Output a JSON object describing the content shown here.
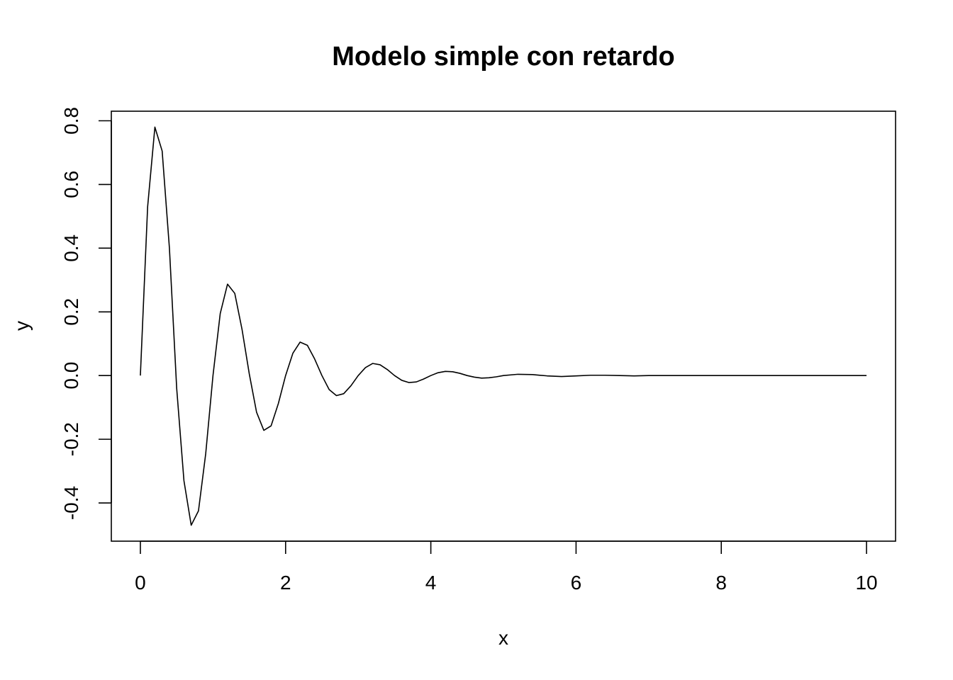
{
  "chart_data": {
    "type": "line",
    "title": "Modelo simple con retardo",
    "xlabel": "x",
    "ylabel": "y",
    "xlim": [
      -0.4,
      10.4
    ],
    "ylim": [
      -0.52,
      0.83
    ],
    "xticks": [
      0,
      2,
      4,
      6,
      8,
      10
    ],
    "xtick_labels": [
      "0",
      "2",
      "4",
      "6",
      "8",
      "10"
    ],
    "yticks": [
      -0.4,
      -0.2,
      0.0,
      0.2,
      0.4,
      0.6,
      0.8
    ],
    "ytick_labels": [
      "-0.4",
      "-0.2",
      "0.0",
      "0.2",
      "0.4",
      "0.6",
      "0.8"
    ],
    "grid": false,
    "series": [
      {
        "x": [
          0.0,
          0.1,
          0.2,
          0.3,
          0.4,
          0.5,
          0.6,
          0.7,
          0.8,
          0.9,
          1.0,
          1.1,
          1.2,
          1.3,
          1.4,
          1.5,
          1.6,
          1.7,
          1.8,
          1.9,
          2.0,
          2.1,
          2.2,
          2.3,
          2.4,
          2.5,
          2.6,
          2.7,
          2.8,
          2.9,
          3.0,
          3.1,
          3.2,
          3.3,
          3.4,
          3.5,
          3.6,
          3.7,
          3.8,
          3.9,
          4.0,
          4.1,
          4.2,
          4.3,
          4.4,
          4.5,
          4.6,
          4.7,
          4.8,
          4.9,
          5.0,
          5.2,
          5.4,
          5.6,
          5.8,
          6.0,
          6.2,
          6.4,
          6.6,
          6.8,
          7.0,
          7.2,
          7.4,
          7.6,
          7.8,
          8.0,
          8.2,
          8.4,
          8.6,
          8.8,
          9.0,
          9.2,
          9.4,
          9.6,
          9.8,
          10.0
        ],
        "y": [
          0.0,
          0.53,
          0.78,
          0.705,
          0.4,
          -0.04,
          -0.33,
          -0.47,
          -0.425,
          -0.245,
          0.0,
          0.195,
          0.287,
          0.258,
          0.145,
          0.005,
          -0.115,
          -0.172,
          -0.158,
          -0.088,
          0.0,
          0.07,
          0.105,
          0.095,
          0.052,
          0.0,
          -0.044,
          -0.063,
          -0.057,
          -0.032,
          0.0,
          0.025,
          0.038,
          0.034,
          0.019,
          0.0,
          -0.015,
          -0.022,
          -0.02,
          -0.011,
          0.0,
          0.009,
          0.013,
          0.012,
          0.007,
          0.0,
          -0.005,
          -0.008,
          -0.007,
          -0.004,
          0.0,
          0.004,
          0.003,
          -0.001,
          -0.003,
          -0.001,
          0.001,
          0.001,
          0.0,
          -0.001,
          0.0,
          0.0,
          0.0,
          0.0,
          0.0,
          0.0,
          0.0,
          0.0,
          0.0,
          0.0,
          0.0,
          0.0,
          0.0,
          0.0,
          0.0,
          0.0
        ]
      }
    ]
  }
}
